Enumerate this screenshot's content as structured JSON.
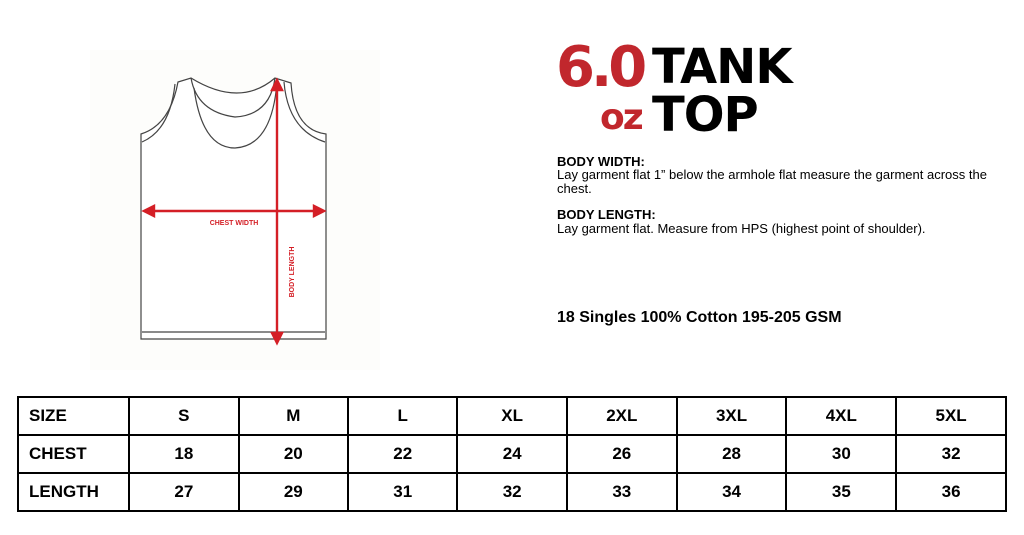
{
  "diagram": {
    "chest_label": "CHEST WIDTH",
    "length_label": "BODY LENGTH"
  },
  "logo": {
    "weight": "6.0",
    "unit": "oz",
    "line1": "TANK",
    "line2": "TOP"
  },
  "colors": {
    "accent": "#c1272d",
    "text": "#000000"
  },
  "instructions": {
    "body_width_title": "BODY WIDTH:",
    "body_width_text": "Lay garment flat 1” below the armhole flat measure the garment across the chest.",
    "body_length_title": "BODY LENGTH:",
    "body_length_text": "Lay garment flat. Measure from HPS (highest point of shoulder)."
  },
  "fabric": "18 Singles 100% Cotton 195-205 GSM",
  "size_table": {
    "header": [
      "SIZE",
      "S",
      "M",
      "L",
      "XL",
      "2XL",
      "3XL",
      "4XL",
      "5XL"
    ],
    "rows": [
      [
        "CHEST",
        "18",
        "20",
        "22",
        "24",
        "26",
        "28",
        "30",
        "32"
      ],
      [
        "LENGTH",
        "27",
        "29",
        "31",
        "32",
        "33",
        "34",
        "35",
        "36"
      ]
    ]
  }
}
